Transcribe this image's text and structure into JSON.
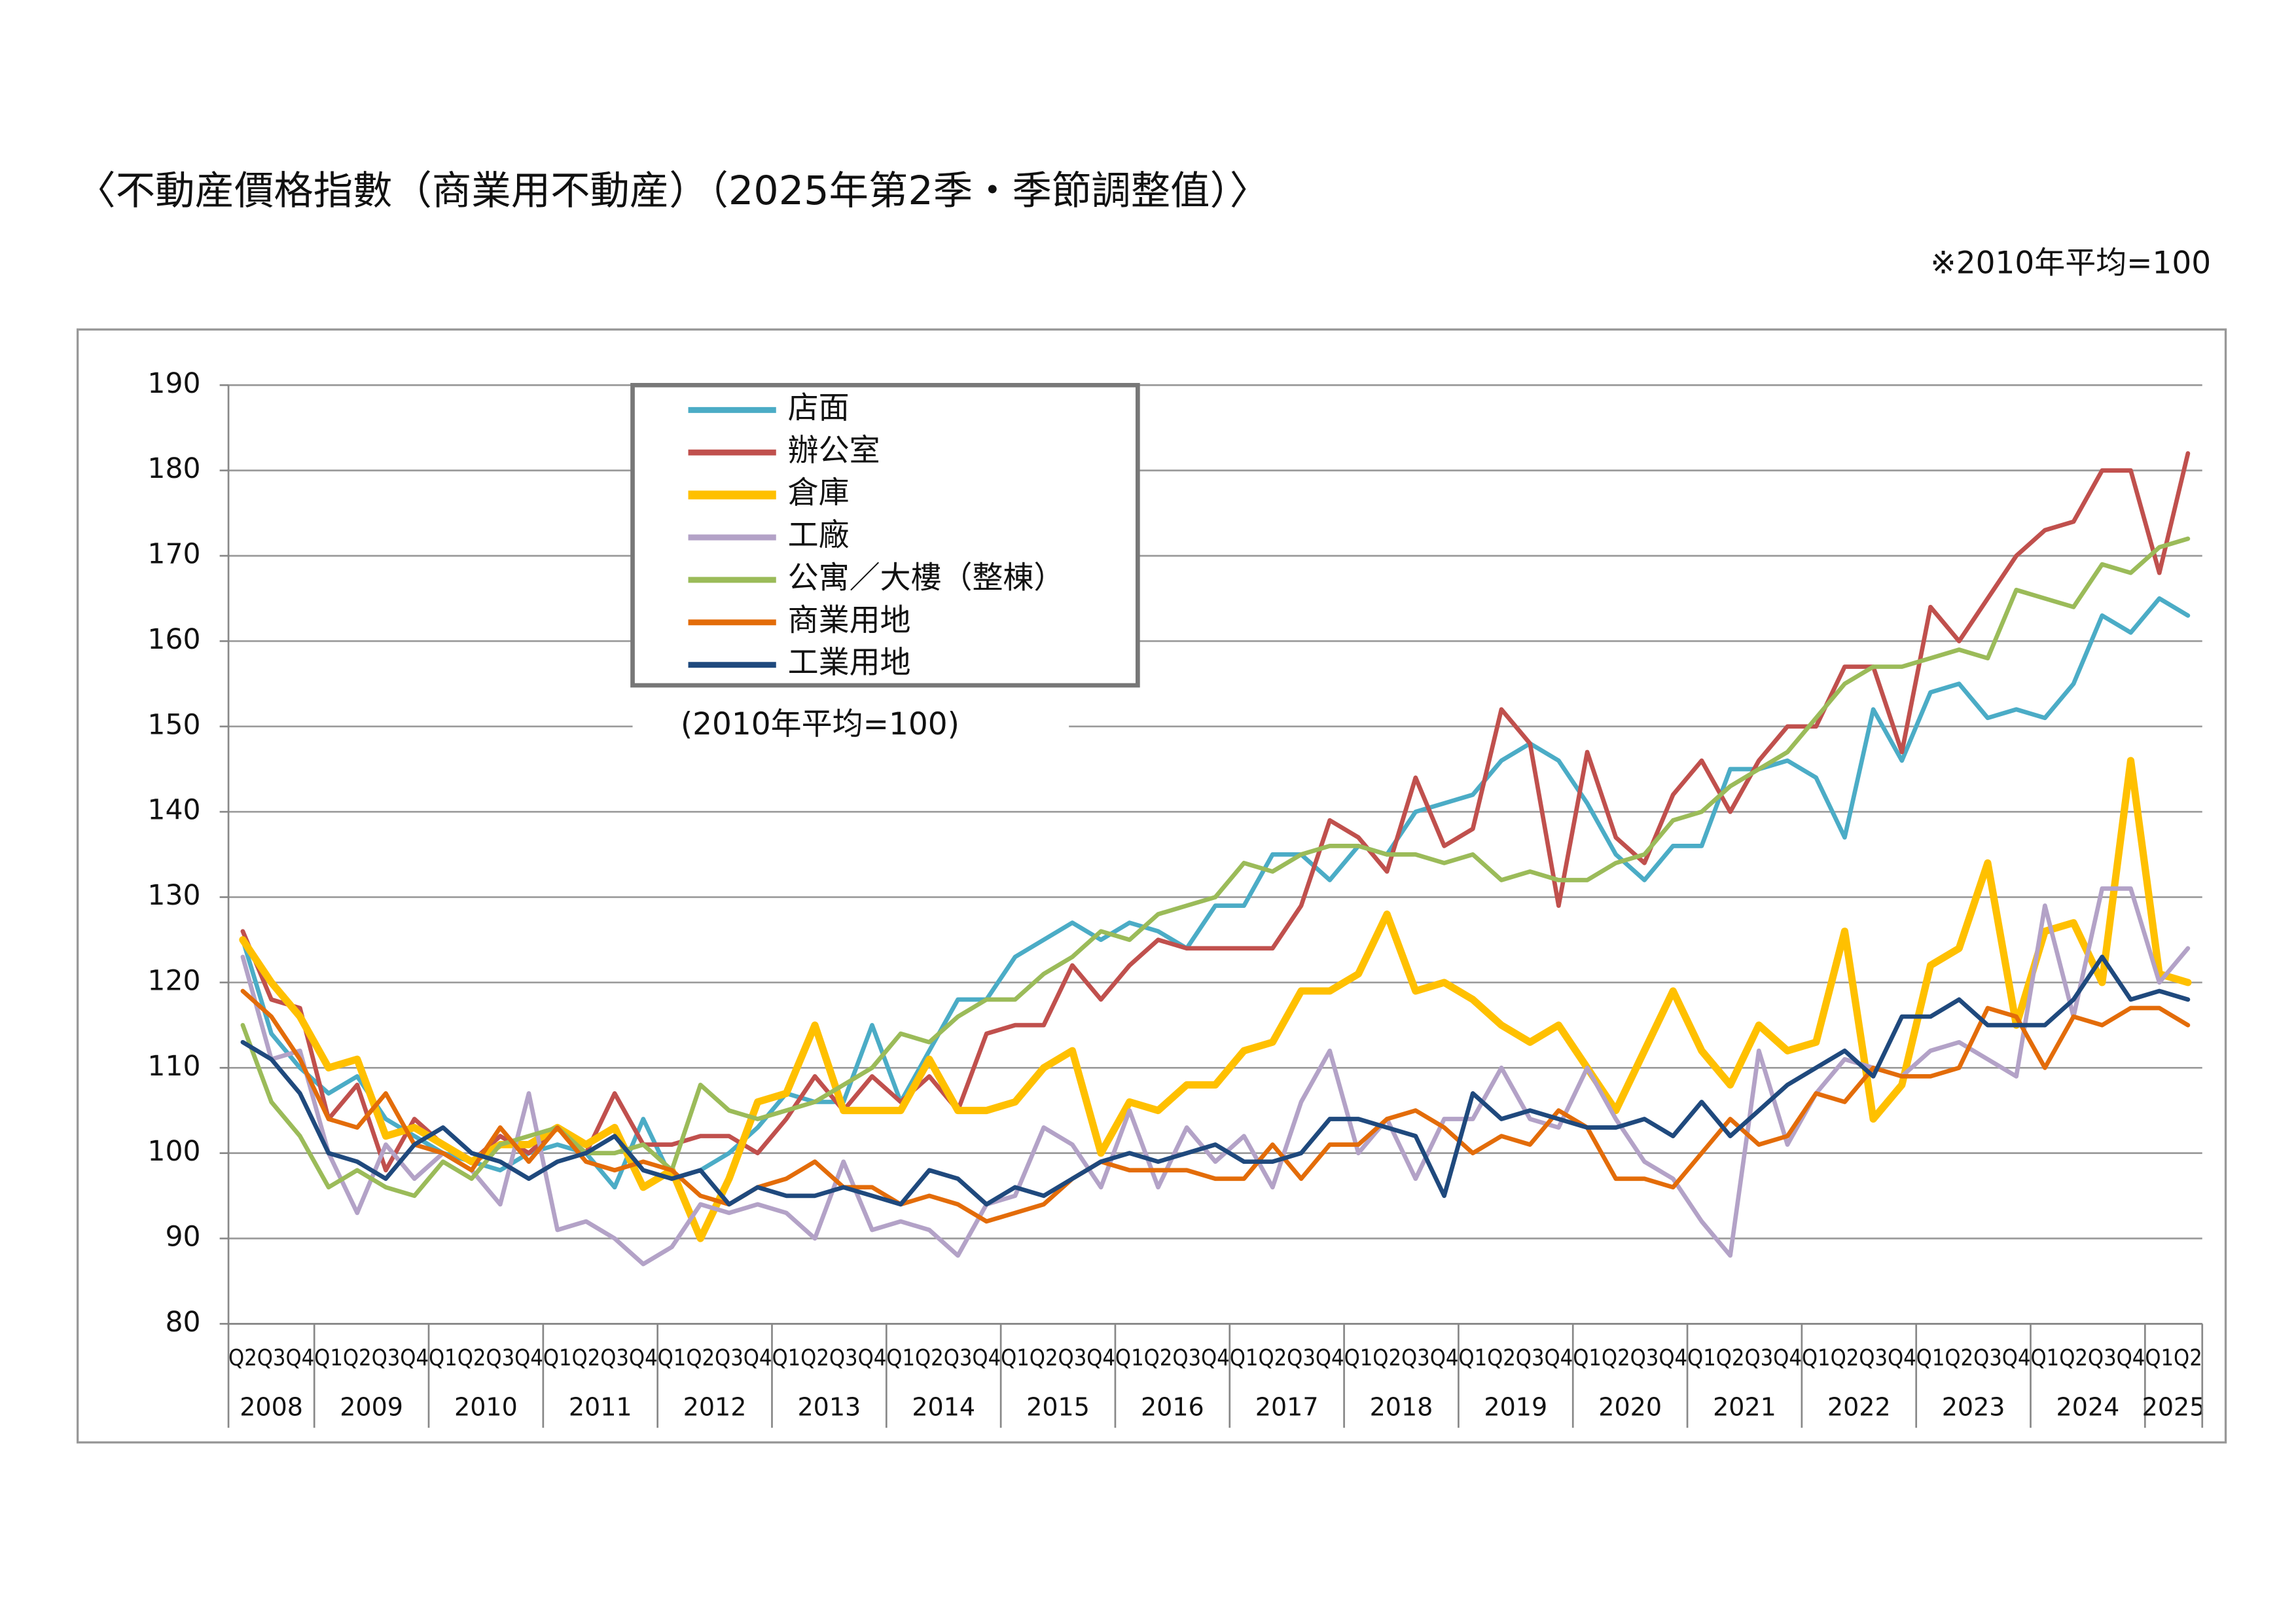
{
  "chart_data": {
    "type": "line",
    "title": "〈不動産價格指數（商業用不動産）（2025年第2季・季節調整值）〉",
    "subtitle": "※2010年平均=100",
    "annotation": "(2010年平均=100)",
    "categories": [
      "Q2",
      "Q3",
      "Q4",
      "Q1",
      "Q2",
      "Q3",
      "Q4",
      "Q1",
      "Q2",
      "Q3",
      "Q4",
      "Q1",
      "Q2",
      "Q3",
      "Q4",
      "Q1",
      "Q2",
      "Q3",
      "Q4",
      "Q1",
      "Q2",
      "Q3",
      "Q4",
      "Q1",
      "Q2",
      "Q3",
      "Q4",
      "Q1",
      "Q2",
      "Q3",
      "Q4",
      "Q1",
      "Q2",
      "Q3",
      "Q4",
      "Q1",
      "Q2",
      "Q3",
      "Q4",
      "Q1",
      "Q2",
      "Q3",
      "Q4",
      "Q1",
      "Q2",
      "Q3",
      "Q4",
      "Q1",
      "Q2",
      "Q3",
      "Q4",
      "Q1",
      "Q2",
      "Q3",
      "Q4",
      "Q1",
      "Q2",
      "Q3",
      "Q4",
      "Q1",
      "Q2",
      "Q3",
      "Q4",
      "Q1",
      "Q2",
      "Q3",
      "Q4",
      "Q1",
      "Q2"
    ],
    "category_groups": [
      {
        "label": "2008",
        "span": 3
      },
      {
        "label": "2009",
        "span": 4
      },
      {
        "label": "2010",
        "span": 4
      },
      {
        "label": "2011",
        "span": 4
      },
      {
        "label": "2012",
        "span": 4
      },
      {
        "label": "2013",
        "span": 4
      },
      {
        "label": "2014",
        "span": 4
      },
      {
        "label": "2015",
        "span": 4
      },
      {
        "label": "2016",
        "span": 4
      },
      {
        "label": "2017",
        "span": 4
      },
      {
        "label": "2018",
        "span": 4
      },
      {
        "label": "2019",
        "span": 4
      },
      {
        "label": "2020",
        "span": 4
      },
      {
        "label": "2021",
        "span": 4
      },
      {
        "label": "2022",
        "span": 4
      },
      {
        "label": "2023",
        "span": 4
      },
      {
        "label": "2024",
        "span": 4
      },
      {
        "label": "2025",
        "span": 2
      }
    ],
    "ylim": [
      80,
      190
    ],
    "yticks": [
      80,
      90,
      100,
      110,
      120,
      130,
      140,
      150,
      160,
      170,
      180,
      190
    ],
    "grid": true,
    "series": [
      {
        "name": "店面",
        "color": "#4bacc6",
        "width": 3,
        "values": [
          125,
          114,
          110,
          107,
          109,
          104,
          102,
          100,
          99,
          98,
          100,
          101,
          100,
          96,
          104,
          97,
          98,
          100,
          103,
          107,
          106,
          106,
          115,
          106,
          112,
          118,
          118,
          123,
          125,
          127,
          125,
          127,
          126,
          124,
          129,
          129,
          135,
          135,
          132,
          136,
          135,
          140,
          141,
          142,
          146,
          148,
          146,
          141,
          135,
          132,
          136,
          136,
          145,
          145,
          146,
          144,
          137,
          152,
          146,
          154,
          155,
          151,
          152,
          151,
          155,
          163,
          161,
          165,
          163
        ]
      },
      {
        "name": "辦公室",
        "color": "#c0504d",
        "width": 3,
        "values": [
          126,
          118,
          117,
          104,
          108,
          98,
          104,
          101,
          99,
          102,
          100,
          103,
          100,
          107,
          101,
          101,
          102,
          102,
          100,
          104,
          109,
          105,
          109,
          106,
          109,
          105,
          114,
          115,
          115,
          122,
          118,
          122,
          125,
          124,
          124,
          124,
          124,
          129,
          139,
          137,
          133,
          144,
          136,
          138,
          152,
          148,
          129,
          147,
          137,
          134,
          142,
          146,
          140,
          146,
          150,
          150,
          157,
          157,
          147,
          164,
          160,
          165,
          170,
          173,
          174,
          180,
          180,
          168,
          182
        ]
      },
      {
        "name": "倉庫",
        "color": "#ffc000",
        "width": 5,
        "values": [
          125,
          120,
          116,
          110,
          111,
          102,
          103,
          101,
          99,
          101,
          101,
          103,
          101,
          103,
          96,
          98,
          90,
          97,
          106,
          107,
          115,
          105,
          105,
          105,
          111,
          105,
          105,
          106,
          110,
          112,
          100,
          106,
          105,
          108,
          108,
          112,
          113,
          119,
          119,
          121,
          128,
          119,
          120,
          118,
          115,
          113,
          115,
          110,
          105,
          112,
          119,
          112,
          108,
          115,
          112,
          113,
          126,
          104,
          108,
          122,
          124,
          134,
          115,
          126,
          127,
          120,
          146,
          121,
          120
        ]
      },
      {
        "name": "工廠",
        "color": "#b3a2c7",
        "width": 3,
        "values": [
          123,
          111,
          112,
          100,
          93,
          101,
          97,
          100,
          98,
          94,
          107,
          91,
          92,
          90,
          87,
          89,
          94,
          93,
          94,
          93,
          90,
          99,
          91,
          92,
          91,
          88,
          94,
          95,
          103,
          101,
          96,
          105,
          96,
          103,
          99,
          102,
          96,
          106,
          112,
          100,
          104,
          97,
          104,
          104,
          110,
          104,
          103,
          110,
          104,
          99,
          97,
          92,
          88,
          112,
          101,
          107,
          111,
          110,
          109,
          112,
          113,
          111,
          109,
          129,
          116,
          131,
          131,
          120,
          124
        ]
      },
      {
        "name": "公寓／大樓（整棟）",
        "color": "#9bbb59",
        "width": 3,
        "values": [
          115,
          106,
          102,
          96,
          98,
          96,
          95,
          99,
          97,
          101,
          102,
          103,
          100,
          100,
          101,
          98,
          108,
          105,
          104,
          105,
          106,
          108,
          110,
          114,
          113,
          116,
          118,
          118,
          121,
          123,
          126,
          125,
          128,
          129,
          130,
          134,
          133,
          135,
          136,
          136,
          135,
          135,
          134,
          135,
          132,
          133,
          132,
          132,
          134,
          135,
          139,
          140,
          143,
          145,
          147,
          151,
          155,
          157,
          157,
          158,
          159,
          158,
          166,
          165,
          164,
          169,
          168,
          171,
          172
        ]
      },
      {
        "name": "商業用地",
        "color": "#e36c09",
        "width": 3,
        "values": [
          119,
          116,
          111,
          104,
          103,
          107,
          101,
          100,
          98,
          103,
          99,
          103,
          99,
          98,
          99,
          98,
          95,
          94,
          96,
          97,
          99,
          96,
          96,
          94,
          95,
          94,
          92,
          93,
          94,
          97,
          99,
          98,
          98,
          98,
          97,
          97,
          101,
          97,
          101,
          101,
          104,
          105,
          103,
          100,
          102,
          101,
          105,
          103,
          97,
          97,
          96,
          100,
          104,
          101,
          102,
          107,
          106,
          110,
          109,
          109,
          110,
          117,
          116,
          110,
          116,
          115,
          117,
          117,
          115
        ]
      },
      {
        "name": "工業用地",
        "color": "#1f497d",
        "width": 3,
        "values": [
          113,
          111,
          107,
          100,
          99,
          97,
          101,
          103,
          100,
          99,
          97,
          99,
          100,
          102,
          98,
          97,
          98,
          94,
          96,
          95,
          95,
          96,
          95,
          94,
          98,
          97,
          94,
          96,
          95,
          97,
          99,
          100,
          99,
          100,
          101,
          99,
          99,
          100,
          104,
          104,
          103,
          102,
          95,
          107,
          104,
          105,
          104,
          103,
          103,
          104,
          102,
          106,
          102,
          105,
          108,
          110,
          112,
          109,
          116,
          116,
          118,
          115,
          115,
          115,
          118,
          123,
          118,
          119,
          118
        ]
      }
    ]
  }
}
